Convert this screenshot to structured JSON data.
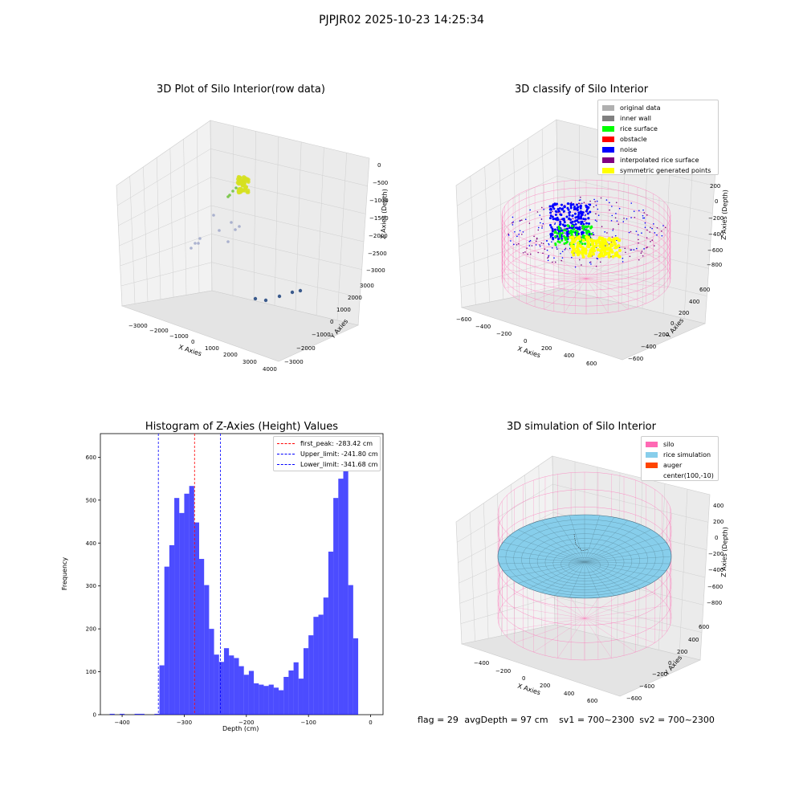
{
  "figure": {
    "title": "PJPJR02 2025-10-23 14:25:34",
    "status_line": {
      "flag": "flag = 29",
      "avg_depth": "avgDepth = 97 cm",
      "sv1": "sv1 = 700~2300",
      "sv2": "sv2 = 700~2300"
    }
  },
  "panels": {
    "raw": {
      "title": "3D Plot of Silo Interior(row data)",
      "xlabel": "X Axies",
      "ylabel": "Y Axies",
      "zlabel": "Z Axies (Depth)",
      "xticks": [
        "−3000",
        "−2000",
        "−1000",
        "0",
        "1000",
        "2000",
        "3000",
        "4000"
      ],
      "yticks": [
        "−3000",
        "−2000",
        "−1000",
        "0",
        "1000",
        "2000",
        "3000"
      ],
      "zticks": [
        "0",
        "−500",
        "−1000",
        "−1500",
        "−2000",
        "−2500",
        "−3000"
      ]
    },
    "classify": {
      "title": "3D classify of Silo Interior",
      "xlabel": "X Axies",
      "ylabel": "Y Axies",
      "zlabel": "Z Axies (Depth)",
      "xticks": [
        "−600",
        "−400",
        "−200",
        "0",
        "200",
        "400",
        "600"
      ],
      "yticks": [
        "−600",
        "−400",
        "−200",
        "0",
        "200",
        "400",
        "600"
      ],
      "zticks": [
        "200",
        "0",
        "−200",
        "−400",
        "−600",
        "−800"
      ],
      "legend": [
        {
          "label": "original data",
          "color": "#b0b0b0"
        },
        {
          "label": "inner wall",
          "color": "#808080"
        },
        {
          "label": "rice surface",
          "color": "#00ff00"
        },
        {
          "label": "obstacle",
          "color": "#ff0000"
        },
        {
          "label": "noise",
          "color": "#0000ff"
        },
        {
          "label": "interpolated rice surface",
          "color": "#800080"
        },
        {
          "label": "symmetric generated points",
          "color": "#ffff00"
        }
      ]
    },
    "simulation": {
      "title": "3D simulation of Silo Interior",
      "xlabel": "X Axies",
      "ylabel": "Y Axies",
      "zlabel": "Z Axies (Depth)",
      "xticks": [
        "−400",
        "−200",
        "0",
        "200",
        "400",
        "600"
      ],
      "yticks": [
        "−600",
        "−400",
        "−200",
        "0",
        "200",
        "400",
        "600"
      ],
      "zticks": [
        "400",
        "200",
        "0",
        "−200",
        "−400",
        "−600",
        "−800"
      ],
      "legend": [
        {
          "label": "silo",
          "color": "#ff69b4"
        },
        {
          "label": "rice simulation",
          "color": "#87ceeb"
        },
        {
          "label": "auger",
          "color": "#ff4500"
        },
        {
          "label": "center(100,-10)",
          "color": ""
        }
      ]
    }
  },
  "chart_data": [
    {
      "type": "scatter",
      "title": "3D Plot of Silo Interior(row data)",
      "xlabel": "X Axies",
      "ylabel": "Y Axies",
      "zlabel": "Z Axies (Depth)",
      "xlim": [
        -3500,
        4000
      ],
      "ylim": [
        -3000,
        3000
      ],
      "zlim": [
        -3000,
        0
      ],
      "grid": true
    },
    {
      "type": "scatter",
      "title": "3D classify of Silo Interior",
      "xlabel": "X Axies",
      "ylabel": "Y Axies",
      "zlabel": "Z Axies (Depth)",
      "xlim": [
        -650,
        650
      ],
      "ylim": [
        -650,
        650
      ],
      "zlim": [
        -900,
        300
      ],
      "legend_position": "top-right",
      "series": [
        {
          "name": "original data",
          "color": "#b0b0b0"
        },
        {
          "name": "inner wall",
          "color": "#808080"
        },
        {
          "name": "rice surface",
          "color": "#00ff00"
        },
        {
          "name": "obstacle",
          "color": "#ff0000"
        },
        {
          "name": "noise",
          "color": "#0000ff"
        },
        {
          "name": "interpolated rice surface",
          "color": "#800080"
        },
        {
          "name": "symmetric generated points",
          "color": "#ffff00"
        }
      ],
      "grid": true
    },
    {
      "type": "bar",
      "title": "Histogram of Z-Axies (Height) Values",
      "xlabel": "Depth (cm)",
      "ylabel": "Frequency",
      "xlim": [
        -435,
        20
      ],
      "ylim": [
        0,
        655
      ],
      "xticks": [
        -400,
        -300,
        -200,
        -100,
        0
      ],
      "yticks": [
        0,
        100,
        200,
        300,
        400,
        500,
        600
      ],
      "bar_color": "#0000ff",
      "bins": [
        {
          "x0": -420,
          "x1": -412,
          "y": 2
        },
        {
          "x0": -404,
          "x1": -396,
          "y": 2
        },
        {
          "x0": -380,
          "x1": -364,
          "y": 2
        },
        {
          "x0": -348,
          "x1": -340,
          "y": 2
        },
        {
          "x0": -340,
          "x1": -332,
          "y": 115
        },
        {
          "x0": -332,
          "x1": -324,
          "y": 345
        },
        {
          "x0": -324,
          "x1": -316,
          "y": 395
        },
        {
          "x0": -316,
          "x1": -308,
          "y": 505
        },
        {
          "x0": -308,
          "x1": -300,
          "y": 470
        },
        {
          "x0": -300,
          "x1": -292,
          "y": 515
        },
        {
          "x0": -292,
          "x1": -284,
          "y": 533
        },
        {
          "x0": -284,
          "x1": -276,
          "y": 448
        },
        {
          "x0": -276,
          "x1": -268,
          "y": 363
        },
        {
          "x0": -268,
          "x1": -260,
          "y": 302
        },
        {
          "x0": -260,
          "x1": -252,
          "y": 200
        },
        {
          "x0": -252,
          "x1": -244,
          "y": 140
        },
        {
          "x0": -244,
          "x1": -236,
          "y": 123
        },
        {
          "x0": -236,
          "x1": -228,
          "y": 155
        },
        {
          "x0": -228,
          "x1": -220,
          "y": 138
        },
        {
          "x0": -220,
          "x1": -212,
          "y": 132
        },
        {
          "x0": -212,
          "x1": -204,
          "y": 113
        },
        {
          "x0": -204,
          "x1": -196,
          "y": 93
        },
        {
          "x0": -196,
          "x1": -188,
          "y": 102
        },
        {
          "x0": -188,
          "x1": -180,
          "y": 73
        },
        {
          "x0": -180,
          "x1": -172,
          "y": 70
        },
        {
          "x0": -172,
          "x1": -164,
          "y": 67
        },
        {
          "x0": -164,
          "x1": -156,
          "y": 70
        },
        {
          "x0": -156,
          "x1": -148,
          "y": 63
        },
        {
          "x0": -148,
          "x1": -140,
          "y": 57
        },
        {
          "x0": -140,
          "x1": -132,
          "y": 88
        },
        {
          "x0": -132,
          "x1": -124,
          "y": 103
        },
        {
          "x0": -124,
          "x1": -116,
          "y": 122
        },
        {
          "x0": -116,
          "x1": -108,
          "y": 84
        },
        {
          "x0": -108,
          "x1": -100,
          "y": 155
        },
        {
          "x0": -100,
          "x1": -92,
          "y": 185
        },
        {
          "x0": -92,
          "x1": -84,
          "y": 228
        },
        {
          "x0": -84,
          "x1": -76,
          "y": 233
        },
        {
          "x0": -76,
          "x1": -68,
          "y": 273
        },
        {
          "x0": -68,
          "x1": -60,
          "y": 380
        },
        {
          "x0": -60,
          "x1": -52,
          "y": 505
        },
        {
          "x0": -52,
          "x1": -44,
          "y": 550
        },
        {
          "x0": -44,
          "x1": -36,
          "y": 620
        },
        {
          "x0": -36,
          "x1": -28,
          "y": 302
        },
        {
          "x0": -28,
          "x1": -20,
          "y": 178
        }
      ],
      "vlines": [
        {
          "name": "first_peak: -283.42 cm",
          "x": -283.42,
          "color": "#ff0000"
        },
        {
          "name": "Upper_limit: -241.80 cm",
          "x": -241.8,
          "color": "#0000ff"
        },
        {
          "name": "Lower_limit: -341.68 cm",
          "x": -341.68,
          "color": "#0000ff"
        }
      ],
      "legend_position": "top-right"
    },
    {
      "type": "surface",
      "title": "3D simulation of Silo Interior",
      "xlabel": "X Axies",
      "ylabel": "Y Axies",
      "zlabel": "Z Axies (Depth)",
      "xlim": [
        -500,
        650
      ],
      "ylim": [
        -650,
        650
      ],
      "zlim": [
        -900,
        450
      ],
      "legend_position": "top-right",
      "series": [
        {
          "name": "silo",
          "color": "#ff69b4"
        },
        {
          "name": "rice simulation",
          "color": "#87ceeb"
        },
        {
          "name": "auger",
          "color": "#ff4500"
        },
        {
          "name": "center(100,-10)"
        }
      ],
      "grid": true
    }
  ]
}
